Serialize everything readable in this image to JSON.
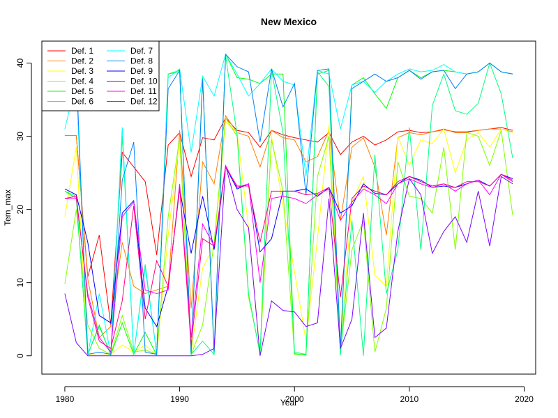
{
  "chart_data": {
    "type": "line",
    "title": "New Mexico",
    "xlabel": "Year",
    "ylabel": "Tem_max",
    "xlim": [
      1978,
      2021
    ],
    "ylim": [
      -2.5,
      43
    ],
    "x_ticks": [
      1980,
      1990,
      2000,
      2010,
      2020
    ],
    "y_ticks": [
      0,
      10,
      20,
      30,
      40
    ],
    "grid": false,
    "legend_position": "top-left",
    "legend_columns": 2,
    "x": [
      1980,
      1981,
      1982,
      1983,
      1984,
      1985,
      1986,
      1987,
      1988,
      1989,
      1990,
      1991,
      1992,
      1993,
      1994,
      1995,
      1996,
      1997,
      1998,
      1999,
      2000,
      2001,
      2002,
      2003,
      2004,
      2005,
      2006,
      2007,
      2008,
      2009,
      2010,
      2011,
      2012,
      2013,
      2014,
      2015,
      2016,
      2017,
      2018,
      2019
    ],
    "series": [
      {
        "name": "Def. 1",
        "color": "#FF0000",
        "values": [
          30.1,
          30.1,
          10.8,
          16.5,
          4.2,
          27.8,
          25.8,
          23.8,
          13.8,
          28.8,
          30.5,
          24.5,
          29.8,
          29.5,
          32.5,
          30.8,
          30.5,
          28.5,
          30.8,
          30.2,
          29.8,
          29.5,
          29.2,
          30.5,
          27.5,
          29.2,
          30.0,
          28.8,
          29.5,
          30.6,
          30.8,
          30.5,
          30.6,
          30.9,
          30.6,
          30.6,
          30.8,
          31.0,
          31.2,
          30.8
        ]
      },
      {
        "name": "Def. 2",
        "color": "#FF8000",
        "values": [
          30.1,
          30.1,
          10.5,
          2.5,
          4.0,
          15.5,
          9.5,
          8.5,
          9.0,
          9.5,
          30.8,
          6.5,
          26.5,
          23.5,
          32.8,
          30.5,
          30.0,
          25.8,
          30.8,
          29.8,
          29.5,
          26.5,
          27.2,
          30.8,
          18.5,
          28.5,
          29.8,
          25.8,
          16.5,
          29.8,
          30.5,
          30.2,
          30.6,
          31.0,
          30.5,
          30.5,
          30.8,
          31.0,
          31.0,
          30.6
        ]
      },
      {
        "name": "Def. 3",
        "color": "#FFFF00",
        "values": [
          19.0,
          28.5,
          0.2,
          0.0,
          0.2,
          1.5,
          0.5,
          1.5,
          0.1,
          16.5,
          29.5,
          0.5,
          12.0,
          15.0,
          32.0,
          30.5,
          17.5,
          0.2,
          30.0,
          20.5,
          11.5,
          2.0,
          16.0,
          31.5,
          1.5,
          21.0,
          24.5,
          11.0,
          9.5,
          30.0,
          26.0,
          29.5,
          29.0,
          31.0,
          25.0,
          29.5,
          30.5,
          28.5,
          31.0,
          30.5
        ]
      },
      {
        "name": "Def. 4",
        "color": "#80FF00",
        "values": [
          9.8,
          20.0,
          4.2,
          1.0,
          0.2,
          5.5,
          0.5,
          0.8,
          0.2,
          19.0,
          29.8,
          0.2,
          4.2,
          15.5,
          32.5,
          30.0,
          8.0,
          0.5,
          29.5,
          22.5,
          0.2,
          0.2,
          24.5,
          30.0,
          0.5,
          14.5,
          18.5,
          0.5,
          6.5,
          26.5,
          21.8,
          21.5,
          19.5,
          28.5,
          14.5,
          30.5,
          30.0,
          26.0,
          30.8,
          19.2
        ]
      },
      {
        "name": "Def. 5",
        "color": "#00FF00",
        "values": [
          22.5,
          21.5,
          0.2,
          4.2,
          0.1,
          4.5,
          0.2,
          3.2,
          0.1,
          38.5,
          39.0,
          0.1,
          38.0,
          0.1,
          41.2,
          38.0,
          37.8,
          37.2,
          38.5,
          38.5,
          0.3,
          0.1,
          38.5,
          39.0,
          0.1,
          37.0,
          38.0,
          35.8,
          33.8,
          38.0,
          39.0,
          38.0,
          38.8,
          39.0,
          38.8,
          38.5,
          38.8,
          40.0,
          38.8,
          38.5
        ]
      },
      {
        "name": "Def. 6",
        "color": "#00FF80",
        "values": [
          22.5,
          21.8,
          0.2,
          4.0,
          0.2,
          30.0,
          0.2,
          12.5,
          0.2,
          38.5,
          38.8,
          0.2,
          2.0,
          0.2,
          41.0,
          30.2,
          8.5,
          0.2,
          39.0,
          30.5,
          0.5,
          0.2,
          38.8,
          36.8,
          0.1,
          18.5,
          0.0,
          27.5,
          8.5,
          14.5,
          31.2,
          14.5,
          34.2,
          38.5,
          33.5,
          33.0,
          34.5,
          40.0,
          35.8,
          27.0
        ]
      },
      {
        "name": "Def. 7",
        "color": "#00FFFF",
        "values": [
          31.0,
          37.5,
          0.2,
          8.5,
          0.2,
          31.2,
          0.2,
          12.0,
          0.2,
          38.0,
          39.2,
          27.8,
          38.2,
          35.5,
          41.2,
          38.5,
          35.5,
          37.2,
          39.2,
          37.5,
          37.0,
          24.5,
          39.0,
          38.5,
          31.0,
          37.0,
          37.5,
          36.0,
          37.5,
          38.5,
          39.2,
          38.8,
          39.0,
          39.8,
          38.8,
          38.5,
          38.8,
          40.0,
          38.8,
          38.5
        ]
      },
      {
        "name": "Def. 8",
        "color": "#0080FF",
        "values": [
          38.0,
          39.2,
          0.2,
          0.5,
          0.2,
          24.0,
          29.2,
          0.5,
          0.2,
          36.5,
          39.0,
          0.3,
          37.8,
          0.5,
          41.2,
          39.5,
          38.8,
          29.2,
          39.2,
          34.0,
          37.2,
          22.0,
          39.0,
          39.2,
          1.0,
          36.5,
          37.5,
          38.5,
          37.5,
          38.0,
          39.0,
          37.8,
          38.8,
          39.0,
          36.5,
          38.5,
          38.8,
          40.0,
          38.8,
          38.5
        ]
      },
      {
        "name": "Def. 9",
        "color": "#0000FF",
        "values": [
          22.8,
          22.0,
          15.5,
          5.5,
          4.5,
          19.5,
          21.2,
          6.5,
          4.0,
          9.5,
          22.8,
          14.0,
          21.8,
          14.5,
          25.8,
          22.8,
          23.5,
          14.2,
          16.0,
          22.5,
          22.5,
          22.8,
          21.8,
          23.0,
          19.5,
          20.5,
          23.5,
          22.2,
          22.0,
          23.5,
          24.5,
          24.0,
          23.0,
          23.2,
          23.0,
          23.5,
          24.0,
          23.2,
          24.8,
          24.2
        ]
      },
      {
        "name": "Def. 10",
        "color": "#8000FF",
        "values": [
          8.5,
          1.8,
          0.0,
          0.0,
          0.0,
          0.0,
          0.0,
          0.0,
          0.0,
          0.0,
          0.0,
          0.0,
          0.2,
          1.0,
          26.0,
          20.0,
          17.5,
          0.0,
          7.5,
          6.2,
          6.0,
          4.0,
          4.5,
          21.5,
          1.0,
          5.0,
          19.5,
          2.5,
          3.8,
          17.0,
          24.2,
          22.0,
          14.0,
          17.0,
          19.0,
          15.5,
          22.5,
          15.0,
          24.5,
          23.5
        ]
      },
      {
        "name": "Def. 11",
        "color": "#FF00FF",
        "values": [
          21.5,
          21.5,
          8.5,
          2.5,
          0.5,
          19.0,
          21.0,
          9.0,
          8.5,
          9.0,
          23.5,
          2.5,
          18.0,
          15.0,
          26.0,
          23.0,
          23.5,
          10.0,
          21.5,
          21.8,
          21.5,
          20.8,
          22.0,
          22.8,
          18.5,
          21.0,
          22.8,
          22.0,
          20.8,
          23.5,
          24.2,
          23.5,
          23.0,
          23.5,
          22.5,
          23.5,
          24.0,
          22.0,
          24.8,
          24.0
        ]
      },
      {
        "name": "Def. 12",
        "color": "#FF0080",
        "values": [
          21.5,
          21.8,
          8.0,
          2.0,
          1.0,
          7.5,
          20.5,
          5.0,
          13.0,
          9.5,
          23.0,
          1.5,
          16.0,
          15.0,
          25.8,
          23.2,
          23.2,
          15.5,
          22.5,
          22.5,
          22.5,
          22.0,
          22.2,
          23.0,
          8.0,
          21.5,
          23.2,
          22.5,
          22.0,
          23.8,
          24.5,
          23.8,
          23.2,
          23.5,
          23.0,
          23.8,
          23.8,
          23.2,
          24.8,
          23.8
        ]
      }
    ]
  }
}
